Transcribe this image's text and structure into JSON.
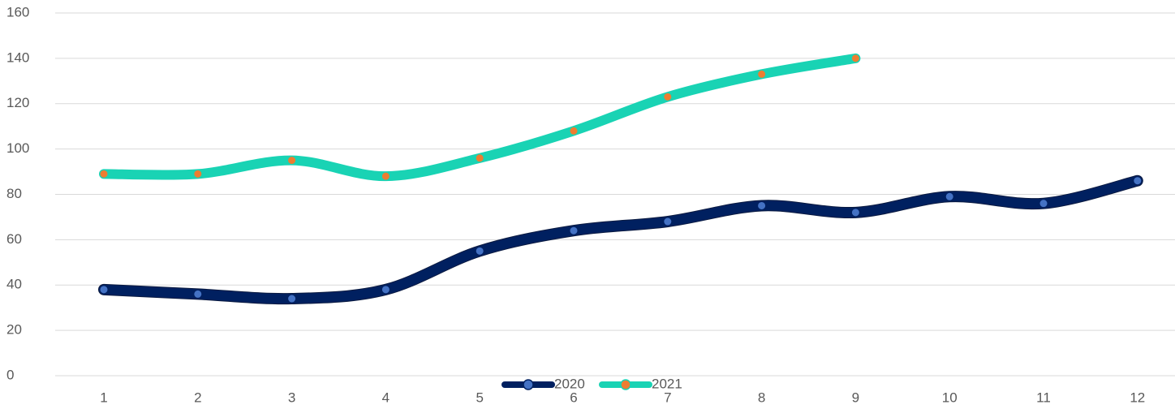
{
  "chart_data": {
    "type": "line",
    "categories": [
      "1",
      "2",
      "3",
      "4",
      "5",
      "6",
      "7",
      "8",
      "9",
      "10",
      "11",
      "12"
    ],
    "series": [
      {
        "name": "2020",
        "color": "#002060",
        "marker_color": "#4472c4",
        "values": [
          38,
          36,
          34,
          38,
          55,
          64,
          68,
          75,
          72,
          79,
          76,
          86
        ]
      },
      {
        "name": "2021",
        "color": "#19d3b4",
        "marker_color": "#ed7d31",
        "values": [
          89,
          89,
          95,
          88,
          96,
          108,
          123,
          133,
          140,
          null,
          null,
          null
        ]
      }
    ],
    "ylim": [
      0,
      160
    ],
    "yticks": [
      0,
      20,
      40,
      60,
      80,
      100,
      120,
      140,
      160
    ],
    "grid": true,
    "smooth": true,
    "legend": "bottom"
  }
}
